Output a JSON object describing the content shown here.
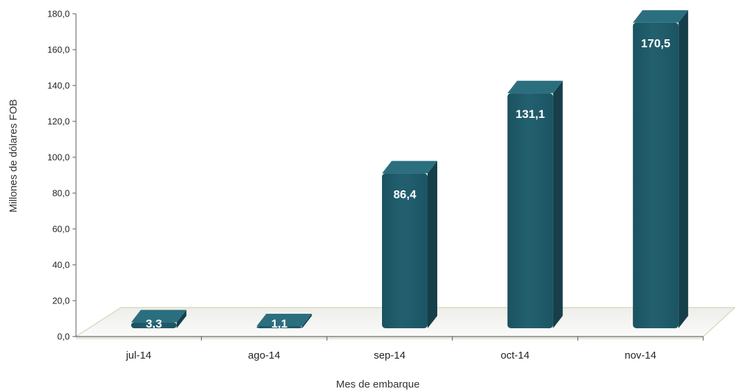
{
  "chart_data": {
    "type": "bar",
    "categories": [
      "jul-14",
      "ago-14",
      "sep-14",
      "oct-14",
      "nov-14"
    ],
    "values": [
      3.3,
      1.1,
      86.4,
      131.1,
      170.5
    ],
    "data_labels": [
      "3,3",
      "1,1",
      "86,4",
      "131,1",
      "170,5"
    ],
    "y_ticks": [
      "0,0",
      "20,0",
      "40,0",
      "60,0",
      "80,0",
      "100,0",
      "120,0",
      "140,0",
      "160,0",
      "180,0"
    ],
    "ylim": [
      0,
      180
    ],
    "xlabel": "Mes de embarque",
    "ylabel": "Millones de dólares FOB",
    "grid": false,
    "legend": "none",
    "colors": {
      "bar_front": "#1e5a68",
      "bar_side": "#163f4a",
      "bar_top": "#2b6f7e",
      "floor": "#f3f3f0",
      "floor_edge": "#d8dcc0"
    }
  }
}
